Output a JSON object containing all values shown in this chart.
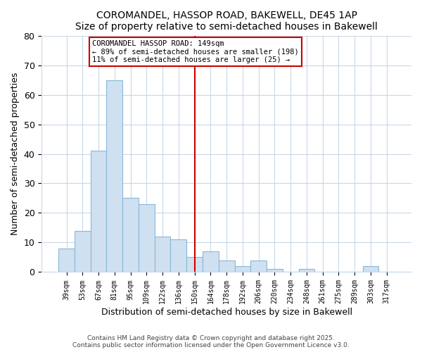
{
  "title": "COROMANDEL, HASSOP ROAD, BAKEWELL, DE45 1AP",
  "subtitle": "Size of property relative to semi-detached houses in Bakewell",
  "xlabel": "Distribution of semi-detached houses by size in Bakewell",
  "ylabel": "Number of semi-detached properties",
  "bar_labels": [
    "39sqm",
    "53sqm",
    "67sqm",
    "81sqm",
    "95sqm",
    "109sqm",
    "122sqm",
    "136sqm",
    "150sqm",
    "164sqm",
    "178sqm",
    "192sqm",
    "206sqm",
    "220sqm",
    "234sqm",
    "248sqm",
    "261sqm",
    "275sqm",
    "289sqm",
    "303sqm",
    "317sqm"
  ],
  "bar_values": [
    8,
    14,
    41,
    65,
    25,
    23,
    12,
    11,
    5,
    7,
    4,
    2,
    4,
    1,
    0,
    1,
    0,
    0,
    0,
    2,
    0
  ],
  "bar_color": "#cfe0f0",
  "bar_edge_color": "#8ab8d8",
  "vline_color": "#cc0000",
  "annotation_title": "COROMANDEL HASSOP ROAD: 149sqm",
  "annotation_line1": "← 89% of semi-detached houses are smaller (198)",
  "annotation_line2": "11% of semi-detached houses are larger (25) →",
  "ylim": [
    0,
    80
  ],
  "yticks": [
    0,
    10,
    20,
    30,
    40,
    50,
    60,
    70,
    80
  ],
  "footer1": "Contains HM Land Registry data © Crown copyright and database right 2025.",
  "footer2": "Contains public sector information licensed under the Open Government Licence v3.0.",
  "bg_color": "#ffffff",
  "grid_color": "#c8d8e8"
}
